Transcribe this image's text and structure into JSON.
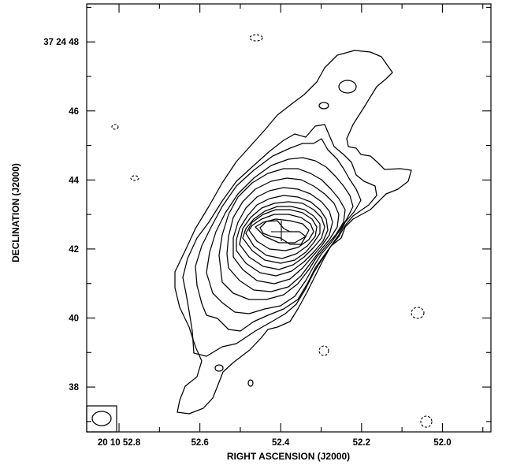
{
  "chart_data": {
    "type": "contour",
    "xlabel": "RIGHT ASCENSION (J2000)",
    "ylabel": "DECLINATION (J2000)",
    "x_axis": {
      "unit": "seconds of RA",
      "range": [
        52.88,
        51.88
      ],
      "reversed": true,
      "ticks": [
        {
          "value": 52.8,
          "label": "20 10 52.8"
        },
        {
          "value": 52.6,
          "label": "52.6"
        },
        {
          "value": 52.4,
          "label": "52.4"
        },
        {
          "value": 52.2,
          "label": "52.2"
        },
        {
          "value": 52.0,
          "label": "52.0"
        }
      ]
    },
    "y_axis": {
      "unit": "arcsec (37 24 xx)",
      "range": [
        36.7,
        49.1
      ],
      "ticks": [
        {
          "value": 48,
          "label": "37 24 48"
        },
        {
          "value": 46,
          "label": "46"
        },
        {
          "value": 44,
          "label": "44"
        },
        {
          "value": 42,
          "label": "42"
        },
        {
          "value": 40,
          "label": "40"
        },
        {
          "value": 38,
          "label": "38"
        }
      ]
    },
    "grid": false,
    "marker": {
      "symbol": "cross",
      "ra": 52.435,
      "dec": 42.5
    },
    "beam": {
      "placement": "bottom-left",
      "shape": "ellipse"
    },
    "source": {
      "center_ra": 52.415,
      "center_dec": 42.55,
      "position_angle_deg_approx": -35,
      "positive_contour_levels": 14,
      "negative_contours_dashed": true
    }
  }
}
